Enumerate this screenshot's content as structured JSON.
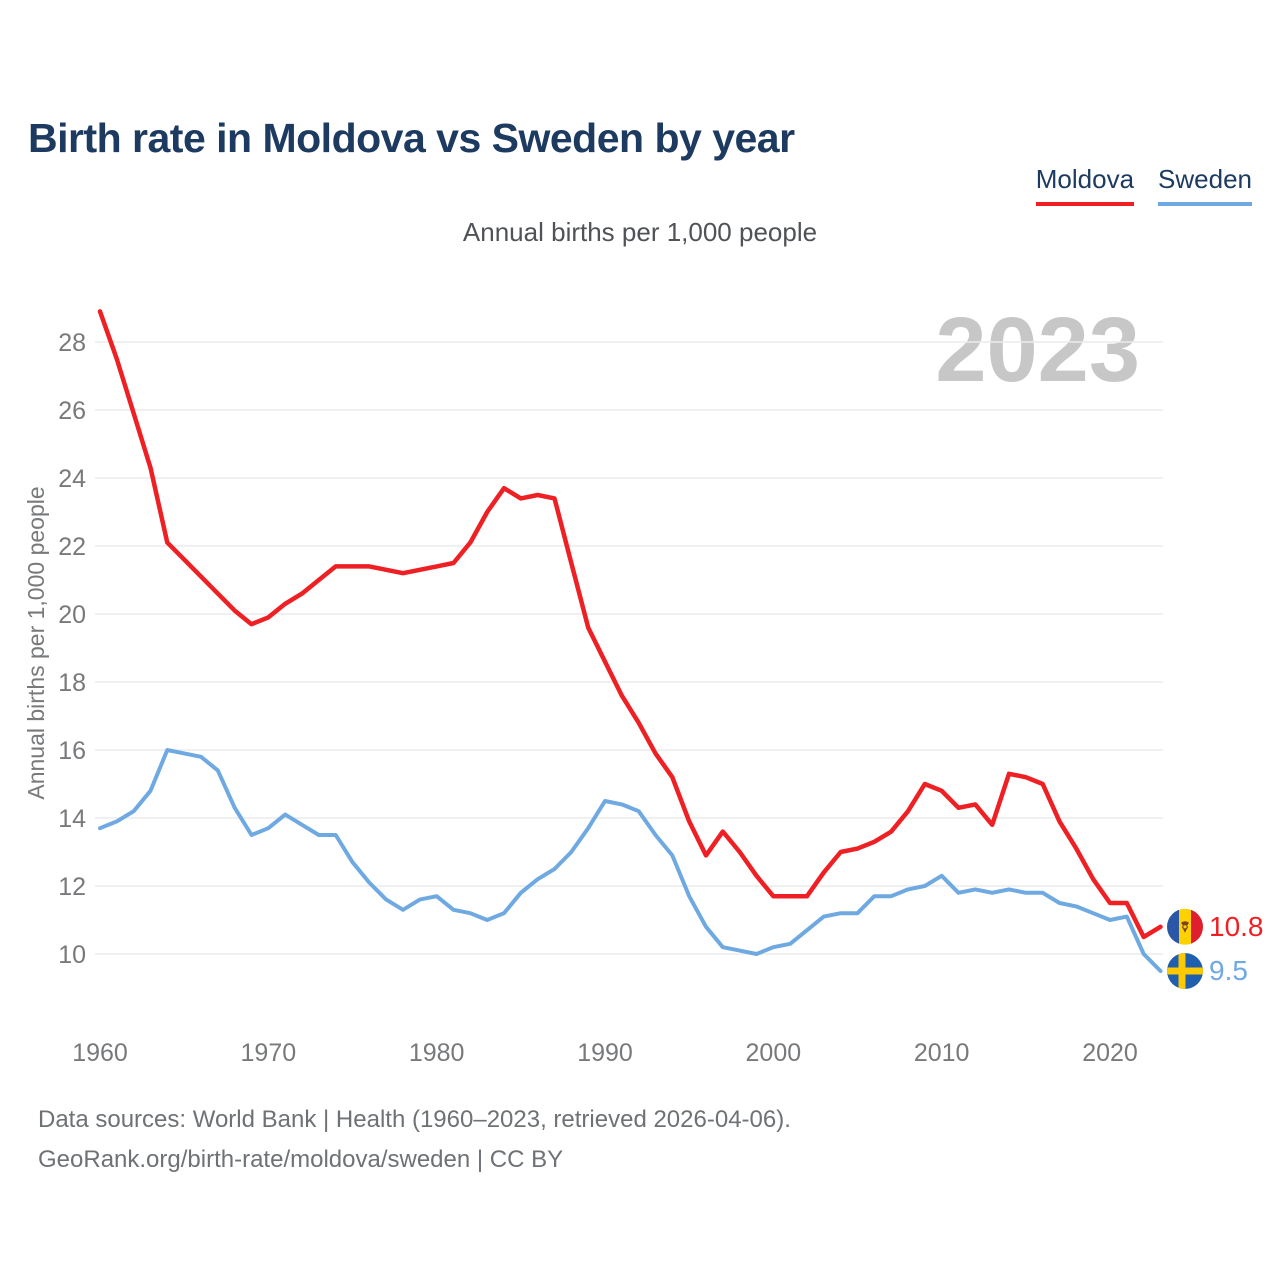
{
  "header": {
    "title": "Birth rate in Moldova vs Sweden by year"
  },
  "subtitle": "Annual births per 1,000 people",
  "watermark": "2023",
  "chart_data": {
    "type": "line",
    "title": "Birth rate in Moldova vs Sweden by year",
    "subtitle": "Annual births per 1,000 people",
    "ylabel": "Annual births per 1,000 people",
    "x_start": 1960,
    "x_end": 2023,
    "xticks": [
      1960,
      1970,
      1980,
      1990,
      2000,
      2010,
      2020
    ],
    "yticks": [
      10,
      12,
      14,
      16,
      18,
      20,
      22,
      24,
      26,
      28
    ],
    "ylim": [
      9.2,
      29.2
    ],
    "grid": "horizontal-only",
    "legend_position": "top-right",
    "series": [
      {
        "name": "Moldova",
        "color": "#ee2024",
        "end_label": "10.8",
        "flag": "moldova",
        "values": [
          28.9,
          27.5,
          25.9,
          24.3,
          22.1,
          21.6,
          21.1,
          20.6,
          20.1,
          19.7,
          19.9,
          20.3,
          20.6,
          21.0,
          21.4,
          21.4,
          21.4,
          21.3,
          21.2,
          21.3,
          21.4,
          21.5,
          22.1,
          23.0,
          23.7,
          23.4,
          23.5,
          23.4,
          21.5,
          19.6,
          18.6,
          17.6,
          16.8,
          15.9,
          15.2,
          13.9,
          12.9,
          13.6,
          13.0,
          12.3,
          11.7,
          11.7,
          11.7,
          12.4,
          13.0,
          13.1,
          13.3,
          13.6,
          14.2,
          15.0,
          14.8,
          14.3,
          14.4,
          13.8,
          15.3,
          15.2,
          15.0,
          13.9,
          13.1,
          12.2,
          11.5,
          11.5,
          10.5,
          10.8
        ]
      },
      {
        "name": "Sweden",
        "color": "#6fa9e2",
        "end_label": "9.5",
        "flag": "sweden",
        "values": [
          13.7,
          13.9,
          14.2,
          14.8,
          16.0,
          15.9,
          15.8,
          15.4,
          14.3,
          13.5,
          13.7,
          14.1,
          13.8,
          13.5,
          13.5,
          12.7,
          12.1,
          11.6,
          11.3,
          11.6,
          11.7,
          11.3,
          11.2,
          11.0,
          11.2,
          11.8,
          12.2,
          12.5,
          13.0,
          13.7,
          14.5,
          14.4,
          14.2,
          13.5,
          12.9,
          11.7,
          10.8,
          10.2,
          10.1,
          10.0,
          10.2,
          10.3,
          10.7,
          11.1,
          11.2,
          11.2,
          11.7,
          11.7,
          11.9,
          12.0,
          12.3,
          11.8,
          11.9,
          11.8,
          11.9,
          11.8,
          11.8,
          11.5,
          11.4,
          11.2,
          11.0,
          11.1,
          10.0,
          9.5
        ]
      }
    ]
  },
  "flags": {
    "moldova": {
      "blue": "#2b57a7",
      "yellow": "#ffd101",
      "red": "#df1f2d",
      "emblem": "#7a4426"
    },
    "sweden": {
      "blue": "#1f5fae",
      "yellow": "#fdc900"
    }
  },
  "colors": {
    "title": "#1d3b60",
    "tick_labels": "#77797b",
    "gridline": "#ebebeb",
    "watermark": "#c7c7c7",
    "footer": "#6e7276"
  },
  "footer": {
    "line1": "Data sources: World Bank | Health (1960–2023, retrieved 2026-04-06).",
    "line2": "GeoRank.org/birth-rate/moldova/sweden | CC BY"
  }
}
